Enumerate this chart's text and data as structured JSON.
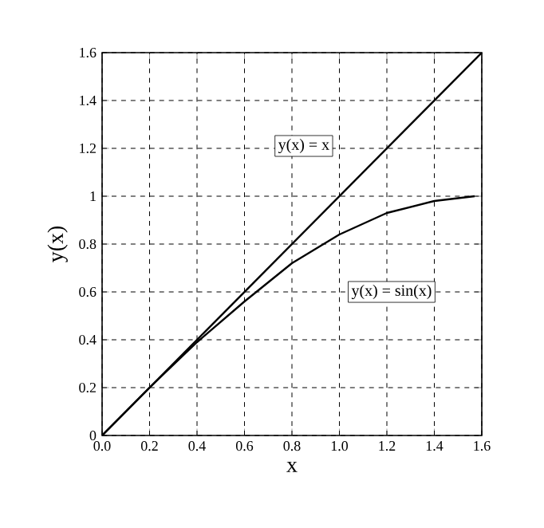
{
  "chart_data": {
    "type": "line",
    "xlabel": "x",
    "ylabel": "y(x)",
    "xlim": [
      0,
      1.6
    ],
    "ylim": [
      0,
      1.6
    ],
    "xticks": [
      {
        "value": 0,
        "label": "0.0"
      },
      {
        "value": 0.2,
        "label": "0.2"
      },
      {
        "value": 0.4,
        "label": "0.4"
      },
      {
        "value": 0.6,
        "label": "0.6"
      },
      {
        "value": 0.8,
        "label": "0.8"
      },
      {
        "value": 1,
        "label": "1.0"
      },
      {
        "value": 1.2,
        "label": "1.2"
      },
      {
        "value": 1.4,
        "label": "1.4"
      },
      {
        "value": 1.6,
        "label": "1.6"
      }
    ],
    "yticks": [
      0,
      0.2,
      0.4,
      0.6,
      0.8,
      1,
      1.2,
      1.4,
      1.6
    ],
    "grid": true,
    "legend": false,
    "marker": "none",
    "line_style": "solid",
    "series": [
      {
        "name": "y(x) = x",
        "color": "#000000",
        "x": [
          0,
          1.6
        ],
        "values": [
          0,
          1.6
        ]
      },
      {
        "name": "y(x) = sin(x)",
        "color": "#000000",
        "x": [
          0,
          0.2,
          0.4,
          0.6,
          0.8,
          1.0,
          1.2,
          1.4,
          1.57
        ],
        "values": [
          0,
          0.2,
          0.39,
          0.56,
          0.72,
          0.84,
          0.93,
          0.98,
          1.0
        ]
      }
    ]
  }
}
